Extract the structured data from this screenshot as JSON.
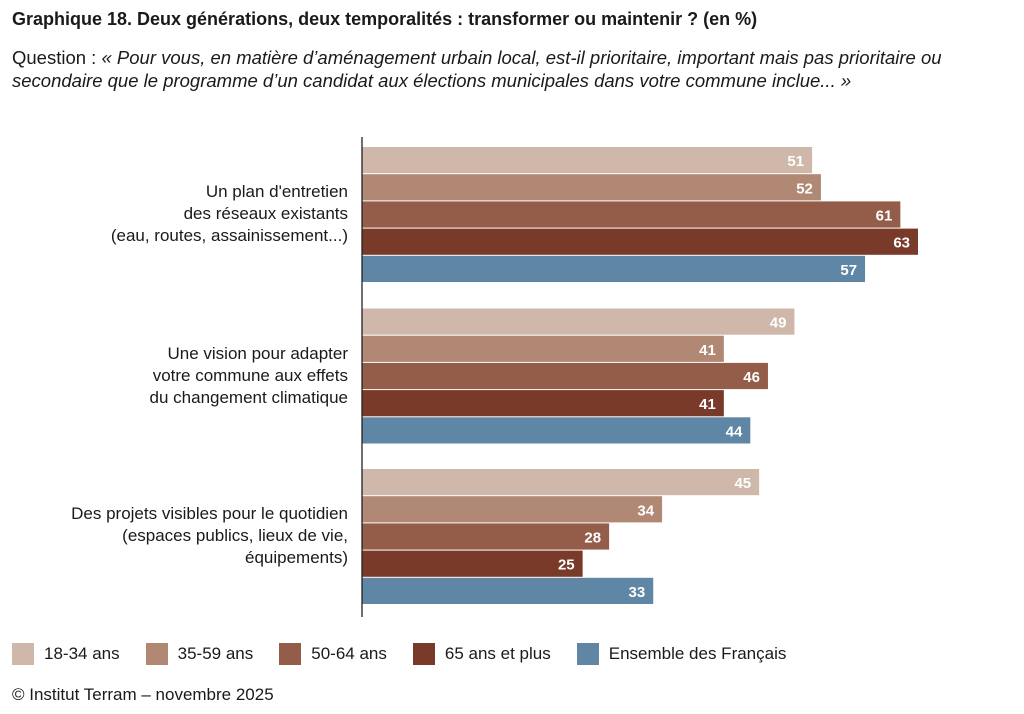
{
  "chart_data": {
    "type": "bar",
    "orientation": "horizontal",
    "title": "Graphique 18. Deux générations, deux temporalités : transformer ou maintenir ? (en %)",
    "question_prefix": "Question : ",
    "question": "« Pour vous, en matière d’aménagement urbain local, est-il prioritaire, important mais pas prioritaire ou secondaire que le programme d’un candidat aux élections municipales dans votre commune inclue... »",
    "categories": [
      [
        "Un plan d'entretien",
        "des réseaux existants",
        "(eau, routes, assainissement...)"
      ],
      [
        "Une vision pour adapter",
        "votre commune aux effets",
        "du changement climatique"
      ],
      [
        "Des projets visibles pour le quotidien",
        "(espaces publics, lieux de vie,",
        "équipements)"
      ]
    ],
    "series": [
      {
        "name": "18-34 ans",
        "color": "#cfb8aa",
        "values": [
          51,
          49,
          45
        ]
      },
      {
        "name": "35-59 ans",
        "color": "#b08874",
        "values": [
          52,
          41,
          34
        ]
      },
      {
        "name": "50-64 ans",
        "color": "#935d4a",
        "values": [
          61,
          46,
          28
        ]
      },
      {
        "name": "65 ans et plus",
        "color": "#7a3a29",
        "values": [
          63,
          41,
          25
        ]
      },
      {
        "name": "Ensemble des Français",
        "color": "#5f86a4",
        "values": [
          57,
          44,
          33
        ]
      }
    ],
    "xlim": [
      0,
      70
    ],
    "legend_position": "bottom",
    "source": "© Institut Terram – novembre 2025"
  }
}
